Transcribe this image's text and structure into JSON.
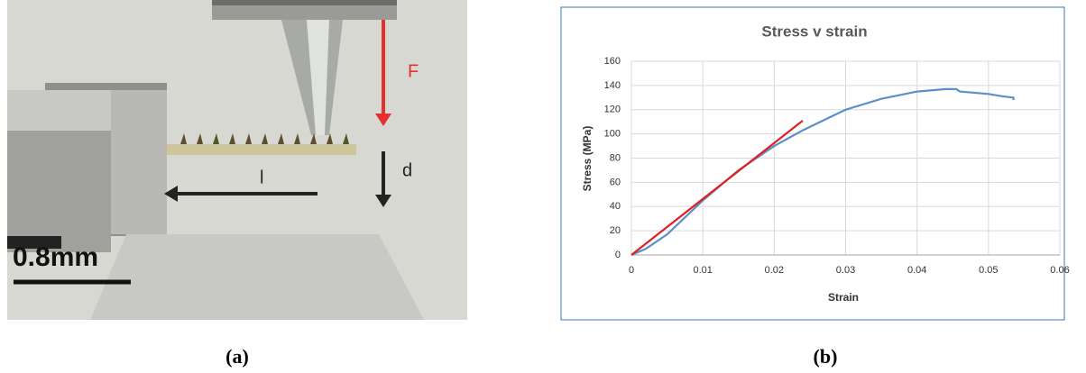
{
  "photo": {
    "force_label": "F",
    "deflection_label": "d",
    "length_label": "l",
    "scale_label": "0.8mm"
  },
  "captions": [
    "(a)",
    "(b)"
  ],
  "chart_data": {
    "type": "line",
    "title": "Stress v strain",
    "xlabel": "Strain",
    "ylabel": "Stress (MPa)",
    "xlim": [
      0,
      0.06
    ],
    "xticks": [
      0,
      0.01,
      0.02,
      0.03,
      0.04,
      0.05,
      0.06
    ],
    "ylim": [
      0,
      160
    ],
    "yticks": [
      0,
      20,
      40,
      60,
      80,
      100,
      120,
      140,
      160
    ],
    "grid": true,
    "series": [
      {
        "color": "#5b8fc9",
        "x": [
          0,
          0.002,
          0.005,
          0.01,
          0.015,
          0.02,
          0.024,
          0.03,
          0.035,
          0.04,
          0.044,
          0.0455,
          0.046,
          0.048,
          0.05,
          0.052,
          0.0535,
          0.0535
        ],
        "values": [
          0,
          5,
          17,
          45,
          70,
          90,
          103,
          120,
          129,
          135,
          137,
          137,
          135,
          134,
          133,
          131,
          130,
          128
        ]
      },
      {
        "color": "#e02020",
        "x": [
          0,
          0.024
        ],
        "values": [
          0,
          111
        ]
      }
    ]
  }
}
